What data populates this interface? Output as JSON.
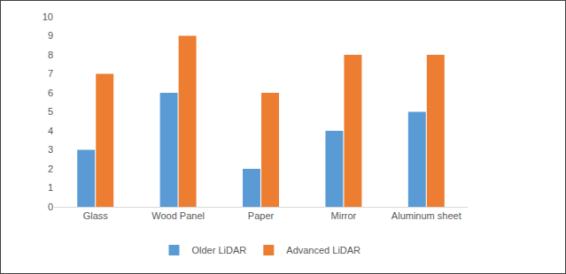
{
  "chart_data": {
    "type": "bar",
    "categories": [
      "Glass",
      "Wood Panel",
      "Paper",
      "Mirror",
      "Aluminum sheet"
    ],
    "series": [
      {
        "name": "Older LiDAR",
        "color": "#5b9bd5",
        "values": [
          3,
          6,
          2,
          4,
          5
        ]
      },
      {
        "name": "Advanced LiDAR",
        "color": "#ed7d31",
        "values": [
          7,
          9,
          6,
          8,
          8
        ]
      }
    ],
    "ylim": [
      0,
      10
    ],
    "yticks": [
      0,
      1,
      2,
      3,
      4,
      5,
      6,
      7,
      8,
      9,
      10
    ],
    "grid": false,
    "legend": "bottom"
  }
}
